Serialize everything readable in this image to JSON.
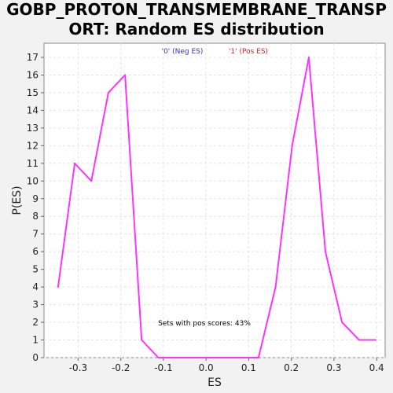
{
  "chart_data": {
    "type": "line",
    "title_lines": [
      "GOBP_PROTON_TRANSMEMBRANE_TRANSP",
      "ORT: Random ES distribution"
    ],
    "xlabel": "ES",
    "ylabel": "P(ES)",
    "xlim": [
      -0.38,
      0.42
    ],
    "ylim": [
      0,
      17.8
    ],
    "x_ticks": [
      -0.3,
      -0.2,
      -0.1,
      0.0,
      0.1,
      0.2,
      0.3,
      0.4
    ],
    "x_tick_labels": [
      "-0.3",
      "-0.2",
      "-0.1",
      "0.0",
      "0.1",
      "0.2",
      "0.3",
      "0.4"
    ],
    "y_ticks": [
      0,
      1,
      2,
      3,
      4,
      5,
      6,
      7,
      8,
      9,
      10,
      11,
      12,
      13,
      14,
      15,
      16,
      17
    ],
    "y_tick_labels": [
      "0",
      "1",
      "2",
      "3",
      "4",
      "5",
      "6",
      "7",
      "8",
      "9",
      "10",
      "11",
      "12",
      "13",
      "14",
      "15",
      "16",
      "17"
    ],
    "grid": true,
    "legend": [
      {
        "label": "'0' (Neg ES)",
        "color": "#3333cc"
      },
      {
        "label": "'1' (Pos ES)",
        "color": "#dd2222"
      }
    ],
    "annotation": "Sets with pos scores: 43%",
    "series": [
      {
        "color": "#ff33ff",
        "x": [
          -0.347,
          -0.308,
          -0.269,
          -0.229,
          -0.19,
          -0.151,
          -0.112,
          -0.073,
          -0.033,
          0.006,
          0.045,
          0.084,
          0.123,
          0.163,
          0.202,
          0.241,
          0.28,
          0.319,
          0.359,
          0.398
        ],
        "y": [
          4,
          11,
          10,
          15,
          16,
          1,
          0,
          0,
          0,
          0,
          0,
          0,
          0,
          4,
          12,
          17,
          6,
          2,
          1,
          1
        ]
      }
    ]
  }
}
